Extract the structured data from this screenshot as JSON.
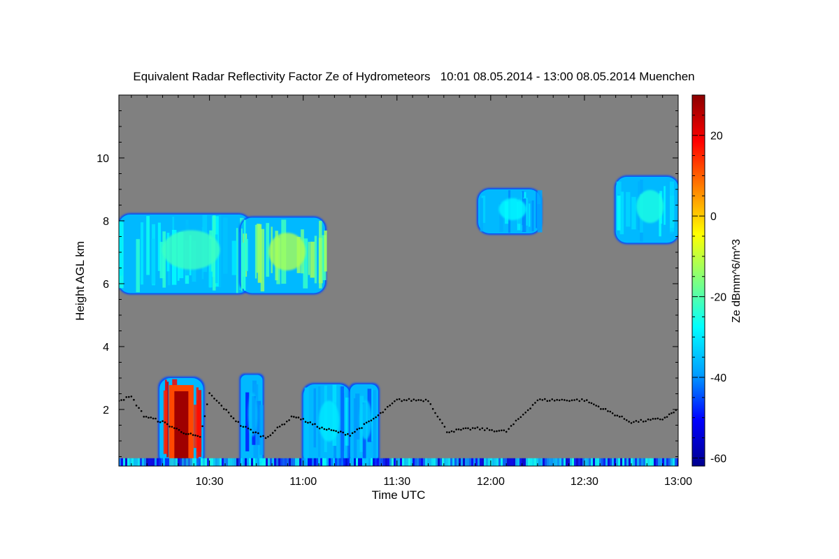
{
  "chart_data": {
    "type": "heatmap",
    "title": "Equivalent Radar Reflectivity Factor Ze of Hydrometeors   10:01 08.05.2014 - 13:00 08.05.2014 Muenchen",
    "xlabel": "Time UTC",
    "ylabel": "Height AGL km",
    "x_range_minutes_utc": [
      601,
      780
    ],
    "x_ticks": [
      {
        "label": "10:30",
        "minute": 630
      },
      {
        "label": "11:00",
        "minute": 660
      },
      {
        "label": "11:30",
        "minute": 690
      },
      {
        "label": "12:00",
        "minute": 720
      },
      {
        "label": "12:30",
        "minute": 750
      },
      {
        "label": "13:00",
        "minute": 780
      }
    ],
    "y_range_km": [
      0.2,
      12
    ],
    "y_ticks": [
      2,
      4,
      6,
      8,
      10
    ],
    "colorbar": {
      "label": "Ze dBmm^6/m^3",
      "range": [
        -62,
        30
      ],
      "ticks": [
        -60,
        -40,
        -20,
        0,
        20
      ],
      "colors": [
        "#00008f",
        "#0000ff",
        "#00a0ff",
        "#00ffff",
        "#7fff7f",
        "#ffff00",
        "#ff8000",
        "#ff0000",
        "#8b0000"
      ]
    },
    "background_color": "#808080",
    "cloud_regions": [
      {
        "name": "cirrus-west",
        "t_start": 601,
        "t_end": 643,
        "h_bottom": 5.7,
        "h_top": 8.2,
        "ze_core": -22
      },
      {
        "name": "cirrus-streaks",
        "t_start": 640,
        "t_end": 667,
        "h_bottom": 5.7,
        "h_top": 8.1,
        "ze_core": -12
      },
      {
        "name": "cirrus-mid",
        "t_start": 716,
        "t_end": 736,
        "h_bottom": 7.6,
        "h_top": 9.0,
        "ze_core": -28
      },
      {
        "name": "cirrus-east",
        "t_start": 760,
        "t_end": 780,
        "h_bottom": 7.3,
        "h_top": 9.4,
        "ze_core": -25
      },
      {
        "name": "convective-core",
        "t_start": 614,
        "t_end": 628,
        "h_bottom": 0.2,
        "h_top": 3.0,
        "ze_core": 28
      },
      {
        "name": "low-cloud-1",
        "t_start": 640,
        "t_end": 647,
        "h_bottom": 0.3,
        "h_top": 3.1,
        "ze_core": -35
      },
      {
        "name": "low-cloud-2",
        "t_start": 660,
        "t_end": 675,
        "h_bottom": 0.2,
        "h_top": 2.8,
        "ze_core": -30
      },
      {
        "name": "low-cloud-3",
        "t_start": 675,
        "t_end": 684,
        "h_bottom": 0.3,
        "h_top": 2.8,
        "ze_core": -33
      }
    ],
    "ceilometer_cloud_base": [
      {
        "t": 601,
        "h": 2.3
      },
      {
        "t": 605,
        "h": 2.4
      },
      {
        "t": 609,
        "h": 1.8
      },
      {
        "t": 615,
        "h": 1.6
      },
      {
        "t": 621,
        "h": 1.3
      },
      {
        "t": 627,
        "h": 1.1
      },
      {
        "t": 630,
        "h": 2.5
      },
      {
        "t": 640,
        "h": 1.5
      },
      {
        "t": 648,
        "h": 1.1
      },
      {
        "t": 657,
        "h": 1.8
      },
      {
        "t": 666,
        "h": 1.4
      },
      {
        "t": 675,
        "h": 1.2
      },
      {
        "t": 684,
        "h": 1.8
      },
      {
        "t": 690,
        "h": 2.3
      },
      {
        "t": 700,
        "h": 2.3
      },
      {
        "t": 706,
        "h": 1.3
      },
      {
        "t": 715,
        "h": 1.4
      },
      {
        "t": 725,
        "h": 1.3
      },
      {
        "t": 735,
        "h": 2.3
      },
      {
        "t": 742,
        "h": 2.3
      },
      {
        "t": 750,
        "h": 2.3
      },
      {
        "t": 765,
        "h": 1.6
      },
      {
        "t": 775,
        "h": 1.7
      },
      {
        "t": 780,
        "h": 2.0
      }
    ]
  }
}
